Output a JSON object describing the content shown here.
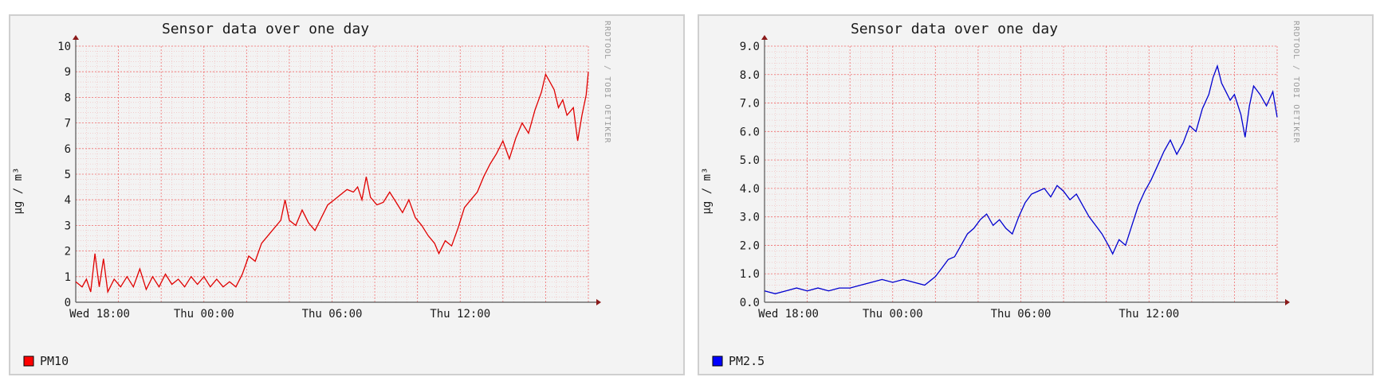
{
  "charts": [
    {
      "title": "Sensor data over one day",
      "ylabel": "µg / m³",
      "watermark": "RRDTOOL / TOBI OETIKER",
      "legend": {
        "label": "PM10",
        "color": "#ff0000"
      },
      "line_color": "#e00000",
      "yticks": [
        "0",
        "1",
        "2",
        "3",
        "4",
        "5",
        "6",
        "7",
        "8",
        "9",
        "10"
      ],
      "xticks": [
        "Wed 18:00",
        "Thu 00:00",
        "Thu 06:00",
        "Thu 12:00"
      ]
    },
    {
      "title": "Sensor data over one day",
      "ylabel": "µg / m³",
      "watermark": "RRDTOOL / TOBI OETIKER",
      "legend": {
        "label": "PM2.5",
        "color": "#0000ff"
      },
      "line_color": "#0000d0",
      "yticks": [
        "0.0",
        "1.0",
        "2.0",
        "3.0",
        "4.0",
        "5.0",
        "6.0",
        "7.0",
        "8.0",
        "9.0"
      ],
      "xticks": [
        "Wed 18:00",
        "Thu 00:00",
        "Thu 06:00",
        "Thu 12:00"
      ]
    }
  ],
  "chart_data": [
    {
      "type": "line",
      "x_unit": "hours since Wed 18:00",
      "xlim": [
        0,
        24
      ],
      "ylim": [
        0,
        10
      ],
      "grid": true,
      "legend_position": "bottom-left",
      "series": [
        {
          "name": "PM10",
          "points": [
            [
              0,
              0.8
            ],
            [
              0.3,
              0.6
            ],
            [
              0.5,
              0.9
            ],
            [
              0.7,
              0.4
            ],
            [
              0.9,
              1.9
            ],
            [
              1.1,
              0.6
            ],
            [
              1.3,
              1.7
            ],
            [
              1.5,
              0.4
            ],
            [
              1.8,
              0.9
            ],
            [
              2.1,
              0.6
            ],
            [
              2.4,
              1.0
            ],
            [
              2.7,
              0.6
            ],
            [
              3.0,
              1.3
            ],
            [
              3.3,
              0.5
            ],
            [
              3.6,
              1.0
            ],
            [
              3.9,
              0.6
            ],
            [
              4.2,
              1.1
            ],
            [
              4.5,
              0.7
            ],
            [
              4.8,
              0.9
            ],
            [
              5.1,
              0.6
            ],
            [
              5.4,
              1.0
            ],
            [
              5.7,
              0.7
            ],
            [
              6.0,
              1.0
            ],
            [
              6.3,
              0.6
            ],
            [
              6.6,
              0.9
            ],
            [
              6.9,
              0.6
            ],
            [
              7.2,
              0.8
            ],
            [
              7.5,
              0.6
            ],
            [
              7.8,
              1.1
            ],
            [
              8.1,
              1.8
            ],
            [
              8.4,
              1.6
            ],
            [
              8.7,
              2.3
            ],
            [
              9.0,
              2.6
            ],
            [
              9.3,
              2.9
            ],
            [
              9.6,
              3.2
            ],
            [
              9.8,
              4.0
            ],
            [
              10.0,
              3.2
            ],
            [
              10.3,
              3.0
            ],
            [
              10.6,
              3.6
            ],
            [
              10.9,
              3.1
            ],
            [
              11.2,
              2.8
            ],
            [
              11.5,
              3.3
            ],
            [
              11.8,
              3.8
            ],
            [
              12.1,
              4.0
            ],
            [
              12.4,
              4.2
            ],
            [
              12.7,
              4.4
            ],
            [
              13.0,
              4.3
            ],
            [
              13.2,
              4.5
            ],
            [
              13.4,
              4.0
            ],
            [
              13.6,
              4.9
            ],
            [
              13.8,
              4.1
            ],
            [
              14.1,
              3.8
            ],
            [
              14.4,
              3.9
            ],
            [
              14.7,
              4.3
            ],
            [
              15.0,
              3.9
            ],
            [
              15.3,
              3.5
            ],
            [
              15.6,
              4.0
            ],
            [
              15.9,
              3.3
            ],
            [
              16.2,
              3.0
            ],
            [
              16.5,
              2.6
            ],
            [
              16.8,
              2.3
            ],
            [
              17.0,
              1.9
            ],
            [
              17.3,
              2.4
            ],
            [
              17.6,
              2.2
            ],
            [
              17.9,
              2.9
            ],
            [
              18.2,
              3.7
            ],
            [
              18.5,
              4.0
            ],
            [
              18.8,
              4.3
            ],
            [
              19.1,
              4.9
            ],
            [
              19.4,
              5.4
            ],
            [
              19.7,
              5.8
            ],
            [
              20.0,
              6.3
            ],
            [
              20.3,
              5.6
            ],
            [
              20.6,
              6.4
            ],
            [
              20.9,
              7.0
            ],
            [
              21.2,
              6.6
            ],
            [
              21.5,
              7.5
            ],
            [
              21.8,
              8.2
            ],
            [
              22.0,
              8.9
            ],
            [
              22.2,
              8.6
            ],
            [
              22.4,
              8.3
            ],
            [
              22.6,
              7.6
            ],
            [
              22.8,
              7.9
            ],
            [
              23.0,
              7.3
            ],
            [
              23.3,
              7.6
            ],
            [
              23.5,
              6.3
            ],
            [
              23.7,
              7.3
            ],
            [
              23.9,
              8.1
            ],
            [
              24.0,
              9.0
            ]
          ]
        }
      ]
    },
    {
      "type": "line",
      "x_unit": "hours since Wed 18:00",
      "xlim": [
        0,
        24
      ],
      "ylim": [
        0,
        9
      ],
      "grid": true,
      "legend_position": "bottom-left",
      "series": [
        {
          "name": "PM2.5",
          "points": [
            [
              0,
              0.4
            ],
            [
              0.5,
              0.3
            ],
            [
              1.0,
              0.4
            ],
            [
              1.5,
              0.5
            ],
            [
              2.0,
              0.4
            ],
            [
              2.5,
              0.5
            ],
            [
              3.0,
              0.4
            ],
            [
              3.5,
              0.5
            ],
            [
              4.0,
              0.5
            ],
            [
              4.5,
              0.6
            ],
            [
              5.0,
              0.7
            ],
            [
              5.5,
              0.8
            ],
            [
              6.0,
              0.7
            ],
            [
              6.5,
              0.8
            ],
            [
              7.0,
              0.7
            ],
            [
              7.5,
              0.6
            ],
            [
              8.0,
              0.9
            ],
            [
              8.3,
              1.2
            ],
            [
              8.6,
              1.5
            ],
            [
              8.9,
              1.6
            ],
            [
              9.2,
              2.0
            ],
            [
              9.5,
              2.4
            ],
            [
              9.8,
              2.6
            ],
            [
              10.1,
              2.9
            ],
            [
              10.4,
              3.1
            ],
            [
              10.7,
              2.7
            ],
            [
              11.0,
              2.9
            ],
            [
              11.3,
              2.6
            ],
            [
              11.6,
              2.4
            ],
            [
              11.9,
              3.0
            ],
            [
              12.2,
              3.5
            ],
            [
              12.5,
              3.8
            ],
            [
              12.8,
              3.9
            ],
            [
              13.1,
              4.0
            ],
            [
              13.4,
              3.7
            ],
            [
              13.7,
              4.1
            ],
            [
              14.0,
              3.9
            ],
            [
              14.3,
              3.6
            ],
            [
              14.6,
              3.8
            ],
            [
              14.9,
              3.4
            ],
            [
              15.2,
              3.0
            ],
            [
              15.5,
              2.7
            ],
            [
              15.8,
              2.4
            ],
            [
              16.1,
              2.0
            ],
            [
              16.3,
              1.7
            ],
            [
              16.6,
              2.2
            ],
            [
              16.9,
              2.0
            ],
            [
              17.2,
              2.7
            ],
            [
              17.5,
              3.4
            ],
            [
              17.8,
              3.9
            ],
            [
              18.1,
              4.3
            ],
            [
              18.4,
              4.8
            ],
            [
              18.7,
              5.3
            ],
            [
              19.0,
              5.7
            ],
            [
              19.3,
              5.2
            ],
            [
              19.6,
              5.6
            ],
            [
              19.9,
              6.2
            ],
            [
              20.2,
              6.0
            ],
            [
              20.5,
              6.8
            ],
            [
              20.8,
              7.3
            ],
            [
              21.0,
              7.9
            ],
            [
              21.2,
              8.3
            ],
            [
              21.4,
              7.7
            ],
            [
              21.6,
              7.4
            ],
            [
              21.8,
              7.1
            ],
            [
              22.0,
              7.3
            ],
            [
              22.3,
              6.6
            ],
            [
              22.5,
              5.8
            ],
            [
              22.7,
              6.9
            ],
            [
              22.9,
              7.6
            ],
            [
              23.2,
              7.3
            ],
            [
              23.5,
              6.9
            ],
            [
              23.8,
              7.4
            ],
            [
              24.0,
              6.5
            ]
          ]
        }
      ]
    }
  ]
}
